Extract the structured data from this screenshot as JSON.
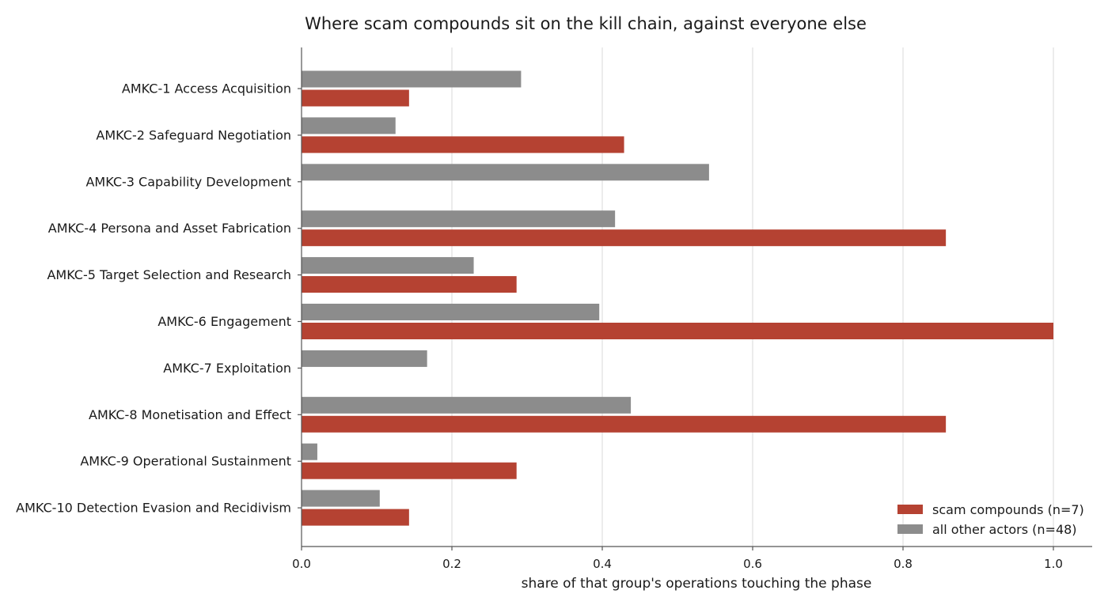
{
  "chart_data": {
    "type": "bar",
    "orientation": "horizontal",
    "title": "Where scam compounds sit on the kill chain, against everyone else",
    "xlabel": "share of that group's operations touching the phase",
    "ylabel": "",
    "xlim": [
      0,
      1.0
    ],
    "xticks": [
      "0.0",
      "0.2",
      "0.4",
      "0.6",
      "0.8",
      "1.0"
    ],
    "grid": "vertical",
    "legend_position": "bottom-right",
    "categories": [
      "AMKC-1  Access Acquisition",
      "AMKC-2  Safeguard Negotiation",
      "AMKC-3  Capability Development",
      "AMKC-4  Persona and Asset Fabrication",
      "AMKC-5  Target Selection and Research",
      "AMKC-6  Engagement",
      "AMKC-7  Exploitation",
      "AMKC-8  Monetisation and Effect",
      "AMKC-9  Operational Sustainment",
      "AMKC-10  Detection Evasion and Recidivism"
    ],
    "series": [
      {
        "name": "scam compounds (n=7)",
        "color": "#b54232",
        "values": [
          0.143,
          0.429,
          0.0,
          0.857,
          0.286,
          1.0,
          0.0,
          0.857,
          0.286,
          0.143
        ]
      },
      {
        "name": "all other actors (n=48)",
        "color": "#8c8c8c",
        "values": [
          0.292,
          0.125,
          0.542,
          0.417,
          0.229,
          0.396,
          0.167,
          0.438,
          0.021,
          0.104
        ]
      }
    ]
  }
}
